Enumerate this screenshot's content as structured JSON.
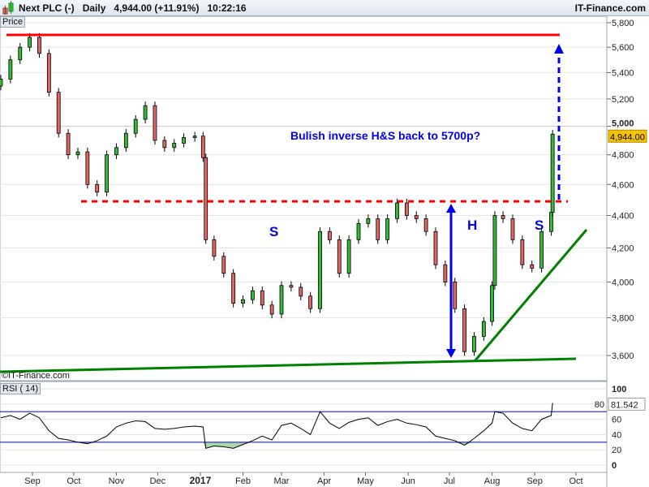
{
  "header": {
    "title": "Next PLC (-)",
    "period": "Daily",
    "last": "4,944.00 (+11.91%)",
    "time": "10:22:16",
    "brand": "IT-Finance.com",
    "icon": "candlestick-icon"
  },
  "panel_labels": {
    "price": "Price",
    "rsi": "RSI ( 14)",
    "copyright": "©IT-Finance.com"
  },
  "colors": {
    "up": "#33bb33",
    "down": "#e06666",
    "resistance": "#ff0000",
    "annotation": "#0000ee",
    "trend": "#008000",
    "last_price_bg": "#f5c400"
  },
  "chart_data": [
    {
      "type": "candlestick",
      "ylim": [
        3500,
        5850
      ],
      "yscale": "log",
      "yticks": [
        "5,800",
        "5,600",
        "5,400",
        "5,200",
        "5,000",
        "4,800",
        "4,600",
        "4,400",
        "4,200",
        "4,000",
        "3,800",
        "3,600"
      ],
      "ytick_values": [
        5800,
        5600,
        5400,
        5200,
        5000,
        4800,
        4600,
        4400,
        4200,
        4000,
        3800,
        3600
      ],
      "last_price_label": "4,944.00",
      "dates": [
        "2016-08-09",
        "2016-08-16",
        "2016-08-23",
        "2016-08-30",
        "2016-09-06",
        "2016-09-13",
        "2016-09-20",
        "2016-09-27",
        "2016-10-04",
        "2016-10-11",
        "2016-10-18",
        "2016-10-25",
        "2016-11-01",
        "2016-11-08",
        "2016-11-15",
        "2016-11-22",
        "2016-11-29",
        "2016-12-06",
        "2016-12-13",
        "2016-12-20",
        "2016-12-28",
        "2017-01-03",
        "2017-01-05",
        "2017-01-11",
        "2017-01-18",
        "2017-01-25",
        "2017-02-01",
        "2017-02-08",
        "2017-02-15",
        "2017-02-22",
        "2017-03-01",
        "2017-03-08",
        "2017-03-15",
        "2017-03-22",
        "2017-03-29",
        "2017-04-05",
        "2017-04-12",
        "2017-04-19",
        "2017-04-26",
        "2017-05-03",
        "2017-05-10",
        "2017-05-17",
        "2017-05-24",
        "2017-05-31",
        "2017-06-07",
        "2017-06-14",
        "2017-06-21",
        "2017-06-28",
        "2017-07-05",
        "2017-07-12",
        "2017-07-19",
        "2017-07-26",
        "2017-08-01",
        "2017-08-03",
        "2017-08-09",
        "2017-08-16",
        "2017-08-23",
        "2017-08-30",
        "2017-09-06",
        "2017-09-13",
        "2017-09-14"
      ],
      "close": [
        5350,
        5500,
        5600,
        5680,
        5550,
        5250,
        4950,
        4800,
        4820,
        4600,
        4550,
        4800,
        4850,
        4950,
        5050,
        5150,
        4900,
        4850,
        4880,
        4920,
        4930,
        4780,
        4250,
        4150,
        4050,
        3880,
        3900,
        3950,
        3870,
        3820,
        3980,
        3970,
        3920,
        3850,
        4300,
        4250,
        4050,
        4250,
        4350,
        4380,
        4250,
        4380,
        4480,
        4400,
        4380,
        4300,
        4100,
        4000,
        3850,
        3620,
        3700,
        3780,
        3980,
        4400,
        4380,
        4250,
        4100,
        4080,
        4300,
        4420,
        4944
      ],
      "annotations": {
        "text": "Bulish inverse H&S back to 5700p?",
        "left_shoulder": "S",
        "head": "H",
        "right_shoulder": "S",
        "resistance_level": 5700,
        "neckline_level": 4490
      }
    },
    {
      "type": "line",
      "title": "RSI ( 14)",
      "ylim": [
        -5,
        105
      ],
      "yticks": [
        "100",
        "80",
        "60",
        "40",
        "20",
        "0"
      ],
      "ytick_values": [
        100,
        80,
        60,
        40,
        20,
        0
      ],
      "levels": [
        70,
        30
      ],
      "last_value_label": "81.542",
      "values": [
        62,
        65,
        60,
        68,
        62,
        45,
        35,
        33,
        30,
        28,
        32,
        38,
        50,
        55,
        58,
        57,
        48,
        47,
        48,
        50,
        51,
        50,
        22,
        25,
        24,
        22,
        27,
        32,
        38,
        33,
        52,
        55,
        48,
        40,
        70,
        55,
        48,
        56,
        60,
        62,
        52,
        57,
        60,
        55,
        53,
        50,
        38,
        35,
        32,
        26,
        35,
        45,
        55,
        70,
        68,
        55,
        48,
        45,
        60,
        65,
        81.5
      ]
    }
  ],
  "xaxis": {
    "labels": [
      "Sep",
      "Oct",
      "Nov",
      "Dec",
      "2017",
      "Feb",
      "Mar",
      "Apr",
      "May",
      "Jun",
      "Jul",
      "Aug",
      "Sep",
      "Oct"
    ],
    "dates": [
      "2016-09-01",
      "2016-10-01",
      "2016-11-01",
      "2016-12-01",
      "2017-01-01",
      "2017-02-01",
      "2017-03-01",
      "2017-04-01",
      "2017-05-01",
      "2017-06-01",
      "2017-07-01",
      "2017-08-01",
      "2017-09-01",
      "2017-10-01"
    ]
  }
}
